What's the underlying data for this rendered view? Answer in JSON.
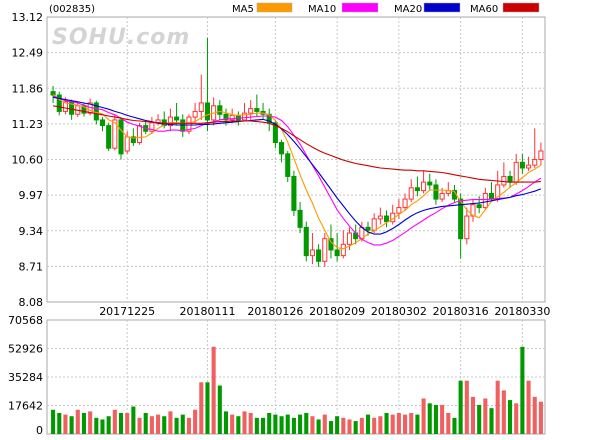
{
  "header": {
    "stock_code": "(002835)",
    "watermark": "SOHU.com"
  },
  "chart_data": [
    {
      "type": "candlestick",
      "ylim": [
        8.08,
        13.12
      ],
      "y_ticks": [
        "13.12",
        "12.49",
        "11.86",
        "11.23",
        "10.60",
        "9.97",
        "9.34",
        "8.71",
        "8.08"
      ],
      "date_ticks": [
        {
          "label": "20171225",
          "index": 12
        },
        {
          "label": "20180111",
          "index": 25
        },
        {
          "label": "20180126",
          "index": 36
        },
        {
          "label": "20180209",
          "index": 46
        },
        {
          "label": "20180302",
          "index": 56
        },
        {
          "label": "20180316",
          "index": 66
        },
        {
          "label": "20180330",
          "index": 76
        }
      ],
      "up_color": "#ff3333",
      "down_color": "#009900",
      "legend": [
        {
          "name": "MA5",
          "color": "#ff9900"
        },
        {
          "name": "MA10",
          "color": "#ff00ff"
        },
        {
          "name": "MA20",
          "color": "#0000cc"
        },
        {
          "name": "MA60",
          "color": "#cc0000"
        }
      ],
      "candles": [
        [
          11.8,
          11.74,
          11.9,
          11.6
        ],
        [
          11.74,
          11.45,
          11.8,
          11.38
        ],
        [
          11.45,
          11.62,
          11.7,
          11.4
        ],
        [
          11.62,
          11.4,
          11.66,
          11.3
        ],
        [
          11.4,
          11.55,
          11.62,
          11.35
        ],
        [
          11.55,
          11.42,
          11.6,
          11.36
        ],
        [
          11.42,
          11.6,
          11.68,
          11.38
        ],
        [
          11.6,
          11.3,
          11.64,
          11.22
        ],
        [
          11.3,
          11.2,
          11.35,
          11.1
        ],
        [
          11.2,
          10.8,
          11.25,
          10.75
        ],
        [
          10.8,
          11.3,
          11.4,
          10.76
        ],
        [
          11.3,
          10.7,
          11.35,
          10.6
        ],
        [
          10.75,
          11.0,
          11.1,
          10.7
        ],
        [
          11.0,
          10.9,
          11.15,
          10.84
        ],
        [
          10.9,
          11.2,
          11.25,
          10.86
        ],
        [
          11.2,
          11.1,
          11.3,
          11.05
        ],
        [
          11.1,
          11.25,
          11.35,
          11.05
        ],
        [
          11.25,
          11.3,
          11.4,
          11.2
        ],
        [
          11.3,
          11.2,
          11.45,
          11.15
        ],
        [
          11.2,
          11.35,
          11.5,
          11.1
        ],
        [
          11.35,
          11.3,
          11.6,
          11.2
        ],
        [
          11.3,
          11.1,
          11.4,
          11.0
        ],
        [
          11.1,
          11.35,
          11.4,
          11.05
        ],
        [
          11.35,
          11.45,
          11.6,
          11.25
        ],
        [
          11.45,
          11.6,
          12.1,
          11.3
        ],
        [
          11.6,
          11.3,
          12.75,
          11.1
        ],
        [
          11.3,
          11.55,
          11.7,
          11.2
        ],
        [
          11.55,
          11.4,
          11.65,
          11.3
        ],
        [
          11.4,
          11.3,
          11.5,
          11.2
        ],
        [
          11.3,
          11.38,
          11.5,
          11.25
        ],
        [
          11.38,
          11.3,
          11.45,
          11.2
        ],
        [
          11.3,
          11.42,
          11.6,
          11.28
        ],
        [
          11.42,
          11.5,
          11.65,
          11.3
        ],
        [
          11.5,
          11.45,
          11.75,
          11.35
        ],
        [
          11.45,
          11.4,
          11.6,
          11.3
        ],
        [
          11.4,
          11.25,
          11.5,
          11.1
        ],
        [
          11.25,
          10.9,
          11.3,
          10.8
        ],
        [
          10.9,
          10.7,
          10.95,
          10.55
        ],
        [
          10.7,
          10.3,
          10.75,
          10.2
        ],
        [
          10.3,
          9.7,
          10.4,
          9.6
        ],
        [
          9.7,
          9.4,
          9.85,
          9.3
        ],
        [
          9.4,
          8.9,
          9.5,
          8.8
        ],
        [
          8.9,
          9.0,
          9.3,
          8.75
        ],
        [
          9.0,
          8.8,
          9.1,
          8.7
        ],
        [
          8.8,
          9.2,
          9.3,
          8.7
        ],
        [
          9.2,
          9.0,
          9.45,
          8.85
        ],
        [
          9.0,
          8.9,
          9.3,
          8.8
        ],
        [
          8.9,
          9.1,
          9.35,
          8.85
        ],
        [
          9.1,
          9.3,
          9.4,
          9.0
        ],
        [
          9.3,
          9.2,
          9.45,
          9.1
        ],
        [
          9.2,
          9.4,
          9.5,
          9.15
        ],
        [
          9.4,
          9.35,
          9.5,
          9.25
        ],
        [
          9.35,
          9.55,
          9.65,
          9.3
        ],
        [
          9.55,
          9.6,
          9.75,
          9.45
        ],
        [
          9.6,
          9.5,
          9.7,
          9.4
        ],
        [
          9.5,
          9.65,
          9.8,
          9.45
        ],
        [
          9.65,
          9.75,
          9.9,
          9.55
        ],
        [
          9.75,
          9.9,
          10.0,
          9.7
        ],
        [
          9.9,
          10.1,
          10.25,
          9.85
        ],
        [
          10.1,
          10.05,
          10.3,
          9.95
        ],
        [
          10.05,
          10.2,
          10.4,
          10.0
        ],
        [
          10.2,
          10.15,
          10.35,
          10.05
        ],
        [
          10.15,
          9.9,
          10.25,
          9.8
        ],
        [
          9.9,
          10.0,
          10.1,
          9.85
        ],
        [
          10.0,
          10.05,
          10.2,
          9.95
        ],
        [
          10.05,
          9.9,
          10.15,
          9.85
        ],
        [
          9.9,
          9.2,
          10.0,
          8.85
        ],
        [
          9.2,
          9.6,
          9.75,
          9.1
        ],
        [
          9.6,
          9.8,
          9.9,
          9.5
        ],
        [
          9.8,
          9.75,
          9.95,
          9.65
        ],
        [
          9.75,
          10.0,
          10.1,
          9.7
        ],
        [
          10.0,
          9.9,
          10.2,
          9.85
        ],
        [
          9.9,
          10.15,
          10.4,
          9.85
        ],
        [
          10.15,
          10.3,
          10.55,
          10.1
        ],
        [
          10.3,
          10.2,
          10.4,
          10.1
        ],
        [
          10.2,
          10.55,
          10.7,
          10.15
        ],
        [
          10.55,
          10.45,
          10.7,
          10.35
        ],
        [
          10.45,
          10.5,
          10.65,
          10.4
        ],
        [
          10.5,
          10.6,
          11.15,
          10.45
        ],
        [
          10.6,
          10.75,
          10.9,
          10.5
        ]
      ],
      "ma_series": [
        {
          "name": "MA5",
          "color": "#ff9900",
          "values": [
            11.75,
            11.66,
            11.6,
            11.58,
            11.56,
            11.53,
            11.47,
            11.43,
            11.41,
            11.3,
            11.25,
            11.12,
            11.0,
            10.98,
            10.99,
            11.0,
            11.07,
            11.15,
            11.21,
            11.25,
            11.25,
            11.24,
            11.25,
            11.27,
            11.34,
            11.39,
            11.42,
            11.45,
            11.43,
            11.39,
            11.38,
            11.39,
            11.4,
            11.42,
            11.42,
            11.39,
            11.29,
            11.13,
            10.91,
            10.62,
            10.33,
            10.06,
            9.83,
            9.56,
            9.35,
            9.14,
            9.04,
            9.02,
            9.07,
            9.13,
            9.2,
            9.28,
            9.34,
            9.41,
            9.48,
            9.55,
            9.63,
            9.7,
            9.8,
            9.87,
            9.96,
            10.06,
            10.06,
            10.06,
            10.05,
            10.03,
            9.86,
            9.71,
            9.61,
            9.57,
            9.71,
            9.86,
            9.94,
            10.02,
            10.11,
            10.19,
            10.28,
            10.37,
            10.43,
            10.5
          ]
        },
        {
          "name": "MA10",
          "color": "#ff00ff",
          "values": [
            11.72,
            11.68,
            11.64,
            11.62,
            11.6,
            11.56,
            11.52,
            11.5,
            11.48,
            11.43,
            11.39,
            11.33,
            11.26,
            11.22,
            11.19,
            11.15,
            11.13,
            11.1,
            11.1,
            11.12,
            11.12,
            11.11,
            11.13,
            11.15,
            11.2,
            11.24,
            11.27,
            11.3,
            11.32,
            11.32,
            11.33,
            11.34,
            11.35,
            11.36,
            11.37,
            11.37,
            11.35,
            11.29,
            11.18,
            11.03,
            10.87,
            10.68,
            10.5,
            10.31,
            10.11,
            9.91,
            9.71,
            9.56,
            9.42,
            9.3,
            9.19,
            9.13,
            9.09,
            9.09,
            9.12,
            9.17,
            9.24,
            9.31,
            9.39,
            9.46,
            9.53,
            9.6,
            9.66,
            9.73,
            9.79,
            9.84,
            9.87,
            9.88,
            9.89,
            9.89,
            9.89,
            9.9,
            9.91,
            9.92,
            9.93,
            9.99,
            10.05,
            10.12,
            10.2,
            10.27
          ]
        },
        {
          "name": "MA20",
          "color": "#0000cc",
          "values": [
            11.7,
            11.68,
            11.66,
            11.64,
            11.62,
            11.6,
            11.58,
            11.55,
            11.52,
            11.49,
            11.45,
            11.42,
            11.38,
            11.35,
            11.32,
            11.29,
            11.27,
            11.24,
            11.23,
            11.22,
            11.21,
            11.21,
            11.21,
            11.21,
            11.22,
            11.22,
            11.23,
            11.24,
            11.25,
            11.26,
            11.27,
            11.28,
            11.29,
            11.3,
            11.31,
            11.28,
            11.22,
            11.14,
            11.04,
            10.92,
            10.79,
            10.65,
            10.51,
            10.37,
            10.22,
            10.07,
            9.92,
            9.78,
            9.64,
            9.51,
            9.4,
            9.32,
            9.28,
            9.28,
            9.32,
            9.38,
            9.45,
            9.53,
            9.6,
            9.66,
            9.7,
            9.73,
            9.75,
            9.77,
            9.78,
            9.79,
            9.8,
            9.81,
            9.82,
            9.83,
            9.85,
            9.87,
            9.89,
            9.91,
            9.93,
            9.96,
            9.98,
            10.01,
            10.04,
            10.08
          ]
        },
        {
          "name": "MA60",
          "color": "#cc0000",
          "values": [
            11.55,
            11.53,
            11.51,
            11.49,
            11.47,
            11.45,
            11.43,
            11.41,
            11.39,
            11.37,
            11.35,
            11.33,
            11.31,
            11.29,
            11.28,
            11.27,
            11.26,
            11.25,
            11.24,
            11.24,
            11.24,
            11.24,
            11.24,
            11.24,
            11.24,
            11.25,
            11.26,
            11.27,
            11.27,
            11.28,
            11.28,
            11.28,
            11.28,
            11.27,
            11.26,
            11.24,
            11.2,
            11.15,
            11.09,
            11.02,
            10.95,
            10.88,
            10.82,
            10.76,
            10.71,
            10.67,
            10.63,
            10.59,
            10.56,
            10.53,
            10.51,
            10.49,
            10.47,
            10.45,
            10.44,
            10.43,
            10.42,
            10.41,
            10.41,
            10.4,
            10.4,
            10.39,
            10.38,
            10.37,
            10.35,
            10.33,
            10.31,
            10.29,
            10.27,
            10.25,
            10.24,
            10.23,
            10.22,
            10.21,
            10.2,
            10.2,
            10.2,
            10.2,
            10.2,
            10.21
          ]
        }
      ]
    },
    {
      "type": "bar",
      "ylim": [
        0,
        70568
      ],
      "y_ticks": [
        "70568",
        "52926",
        "35284",
        "17642",
        "0"
      ],
      "volumes": [
        15000,
        13000,
        12000,
        11000,
        15000,
        13000,
        14000,
        10000,
        9000,
        11000,
        15000,
        13000,
        13000,
        17000,
        10000,
        13000,
        11000,
        12000,
        11000,
        14000,
        10000,
        12000,
        10000,
        15000,
        32000,
        32000,
        54000,
        30000,
        14000,
        12000,
        11000,
        14000,
        13000,
        10000,
        10000,
        13000,
        12000,
        11000,
        12000,
        10000,
        12000,
        13000,
        11000,
        9000,
        12000,
        8000,
        11000,
        10000,
        9000,
        8000,
        10000,
        12000,
        10000,
        11000,
        13000,
        12000,
        13000,
        12000,
        13000,
        12000,
        22000,
        19000,
        18000,
        18000,
        13000,
        10000,
        33000,
        33000,
        23000,
        18000,
        22000,
        16000,
        33000,
        27000,
        21000,
        19000,
        54000,
        33000,
        23000,
        20000
      ]
    }
  ]
}
